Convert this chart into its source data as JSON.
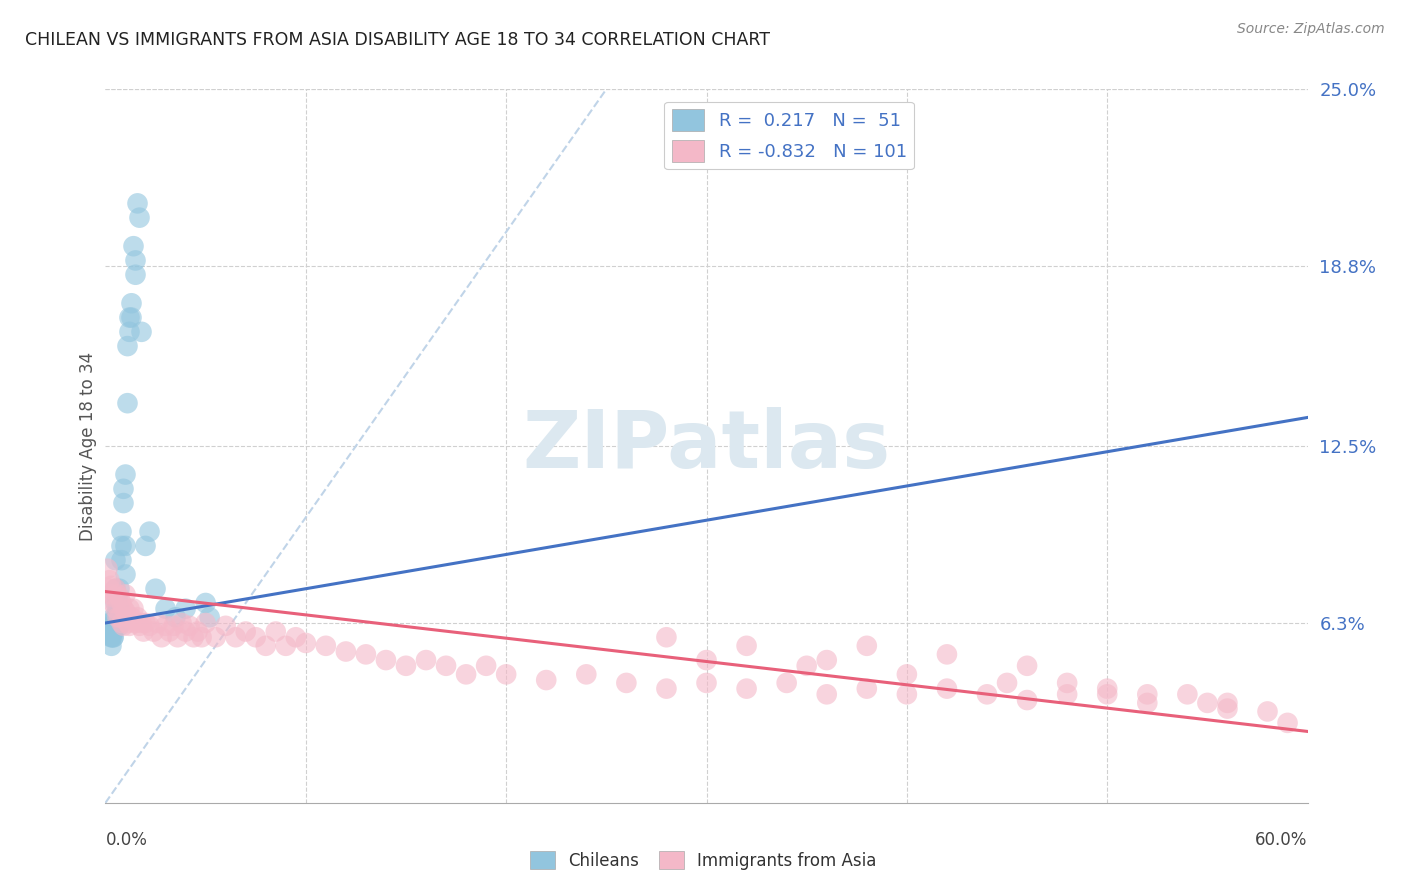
{
  "title": "CHILEAN VS IMMIGRANTS FROM ASIA DISABILITY AGE 18 TO 34 CORRELATION CHART",
  "source": "Source: ZipAtlas.com",
  "ylabel": "Disability Age 18 to 34",
  "right_yticklabels": [
    "6.3%",
    "12.5%",
    "18.8%",
    "25.0%"
  ],
  "right_ytick_vals": [
    0.063,
    0.125,
    0.188,
    0.25
  ],
  "xlim": [
    0.0,
    0.6
  ],
  "ylim": [
    0.0,
    0.25
  ],
  "blue_color": "#92c5de",
  "pink_color": "#f4b8c8",
  "blue_line_color": "#4472c4",
  "pink_line_color": "#e8607a",
  "ref_line_color": "#c0d4e8",
  "watermark_color": "#dce8f0",
  "blue_scatter_x": [
    0.002,
    0.002,
    0.003,
    0.003,
    0.003,
    0.003,
    0.003,
    0.004,
    0.004,
    0.004,
    0.004,
    0.004,
    0.005,
    0.005,
    0.005,
    0.005,
    0.006,
    0.006,
    0.006,
    0.006,
    0.007,
    0.007,
    0.007,
    0.008,
    0.008,
    0.008,
    0.009,
    0.009,
    0.01,
    0.01,
    0.01,
    0.011,
    0.011,
    0.012,
    0.012,
    0.013,
    0.013,
    0.014,
    0.015,
    0.015,
    0.016,
    0.017,
    0.018,
    0.02,
    0.022,
    0.025,
    0.03,
    0.035,
    0.04,
    0.05,
    0.052
  ],
  "blue_scatter_y": [
    0.063,
    0.06,
    0.058,
    0.062,
    0.058,
    0.055,
    0.06,
    0.062,
    0.058,
    0.065,
    0.06,
    0.058,
    0.065,
    0.07,
    0.075,
    0.085,
    0.07,
    0.068,
    0.072,
    0.065,
    0.075,
    0.068,
    0.062,
    0.085,
    0.095,
    0.09,
    0.11,
    0.105,
    0.115,
    0.09,
    0.08,
    0.16,
    0.14,
    0.17,
    0.165,
    0.175,
    0.17,
    0.195,
    0.19,
    0.185,
    0.21,
    0.205,
    0.165,
    0.09,
    0.095,
    0.075,
    0.068,
    0.065,
    0.068,
    0.07,
    0.065
  ],
  "pink_scatter_x": [
    0.001,
    0.002,
    0.002,
    0.003,
    0.003,
    0.004,
    0.004,
    0.005,
    0.005,
    0.006,
    0.006,
    0.007,
    0.007,
    0.008,
    0.008,
    0.009,
    0.009,
    0.01,
    0.01,
    0.011,
    0.011,
    0.012,
    0.012,
    0.013,
    0.014,
    0.015,
    0.016,
    0.017,
    0.018,
    0.019,
    0.02,
    0.022,
    0.024,
    0.026,
    0.028,
    0.03,
    0.032,
    0.034,
    0.036,
    0.038,
    0.04,
    0.042,
    0.044,
    0.046,
    0.048,
    0.05,
    0.055,
    0.06,
    0.065,
    0.07,
    0.075,
    0.08,
    0.085,
    0.09,
    0.095,
    0.1,
    0.11,
    0.12,
    0.13,
    0.14,
    0.15,
    0.16,
    0.17,
    0.18,
    0.19,
    0.2,
    0.22,
    0.24,
    0.26,
    0.28,
    0.3,
    0.32,
    0.34,
    0.36,
    0.38,
    0.4,
    0.42,
    0.44,
    0.46,
    0.48,
    0.5,
    0.52,
    0.54,
    0.56,
    0.58,
    0.59,
    0.3,
    0.35,
    0.4,
    0.45,
    0.5,
    0.55,
    0.38,
    0.42,
    0.46,
    0.52,
    0.56,
    0.28,
    0.32,
    0.36,
    0.48
  ],
  "pink_scatter_y": [
    0.082,
    0.078,
    0.075,
    0.073,
    0.076,
    0.072,
    0.07,
    0.075,
    0.068,
    0.073,
    0.065,
    0.072,
    0.065,
    0.07,
    0.063,
    0.068,
    0.062,
    0.067,
    0.073,
    0.065,
    0.063,
    0.068,
    0.062,
    0.065,
    0.068,
    0.063,
    0.065,
    0.062,
    0.063,
    0.06,
    0.063,
    0.062,
    0.06,
    0.063,
    0.058,
    0.062,
    0.06,
    0.062,
    0.058,
    0.063,
    0.06,
    0.062,
    0.058,
    0.06,
    0.058,
    0.063,
    0.058,
    0.062,
    0.058,
    0.06,
    0.058,
    0.055,
    0.06,
    0.055,
    0.058,
    0.056,
    0.055,
    0.053,
    0.052,
    0.05,
    0.048,
    0.05,
    0.048,
    0.045,
    0.048,
    0.045,
    0.043,
    0.045,
    0.042,
    0.04,
    0.042,
    0.04,
    0.042,
    0.038,
    0.04,
    0.038,
    0.04,
    0.038,
    0.036,
    0.038,
    0.038,
    0.035,
    0.038,
    0.035,
    0.032,
    0.028,
    0.05,
    0.048,
    0.045,
    0.042,
    0.04,
    0.035,
    0.055,
    0.052,
    0.048,
    0.038,
    0.033,
    0.058,
    0.055,
    0.05,
    0.042
  ],
  "blue_line_x0": 0.0,
  "blue_line_y0": 0.063,
  "blue_line_x1": 0.6,
  "blue_line_y1": 0.135,
  "pink_line_x0": 0.0,
  "pink_line_y0": 0.074,
  "pink_line_x1": 0.6,
  "pink_line_y1": 0.025,
  "ref_line_x0": 0.0,
  "ref_line_y0": 0.0,
  "ref_line_x1": 0.25,
  "ref_line_y1": 0.25
}
